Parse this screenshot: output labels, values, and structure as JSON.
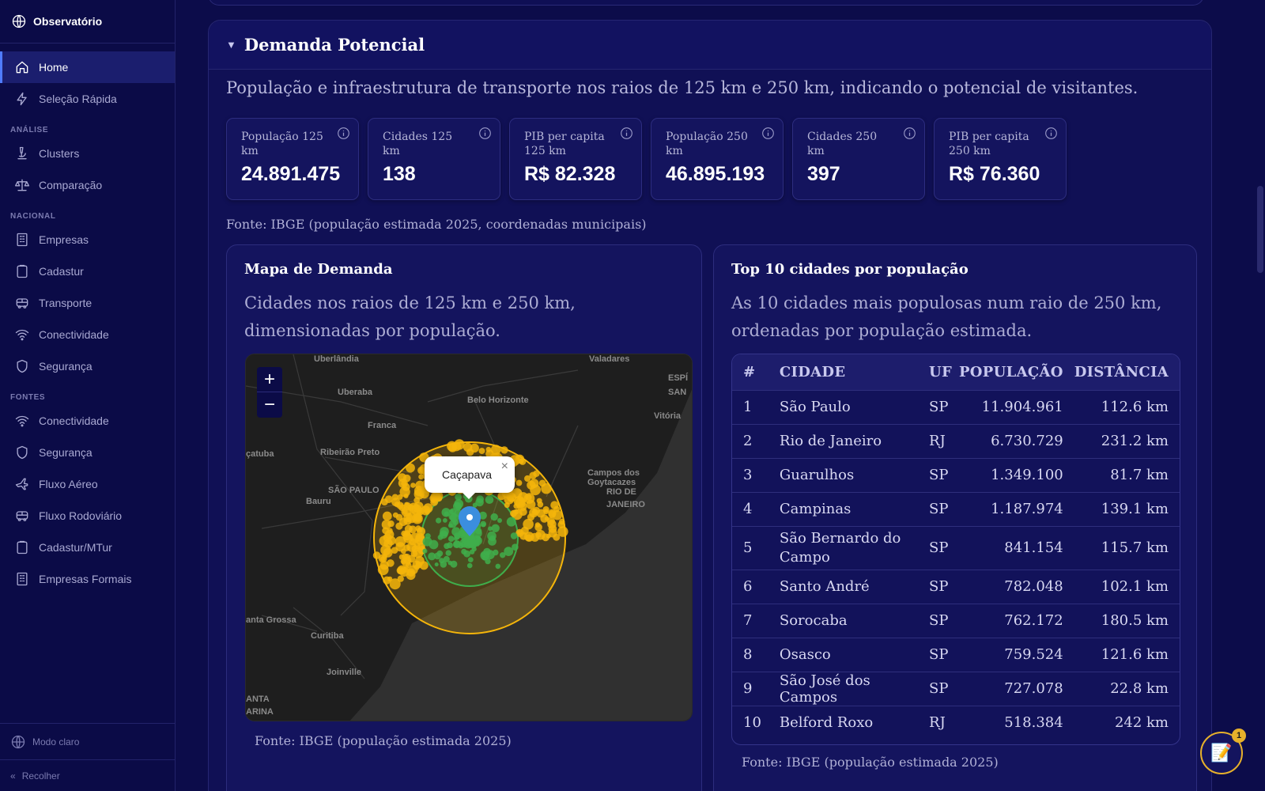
{
  "app": {
    "title": "Observatório"
  },
  "sidebar": {
    "items": [
      {
        "label": "Home",
        "icon": "home-icon",
        "active": true
      },
      {
        "label": "Seleção Rápida",
        "icon": "lightning-icon"
      }
    ],
    "sections": [
      {
        "title": "ANÁLISE",
        "items": [
          {
            "label": "Clusters",
            "icon": "microscope-icon"
          },
          {
            "label": "Comparação",
            "icon": "scale-icon"
          }
        ]
      },
      {
        "title": "NACIONAL",
        "items": [
          {
            "label": "Empresas",
            "icon": "building-icon"
          },
          {
            "label": "Cadastur",
            "icon": "clipboard-icon"
          },
          {
            "label": "Transporte",
            "icon": "bus-icon"
          },
          {
            "label": "Conectividade",
            "icon": "wifi-icon"
          },
          {
            "label": "Segurança",
            "icon": "shield-icon"
          }
        ]
      },
      {
        "title": "FONTES",
        "items": [
          {
            "label": "Conectividade",
            "icon": "wifi-icon"
          },
          {
            "label": "Segurança",
            "icon": "shield-icon"
          },
          {
            "label": "Fluxo Aéreo",
            "icon": "plane-icon"
          },
          {
            "label": "Fluxo Rodoviário",
            "icon": "bus-icon"
          },
          {
            "label": "Cadastur/MTur",
            "icon": "clipboard-icon"
          },
          {
            "label": "Empresas Formais",
            "icon": "building-icon"
          }
        ]
      }
    ],
    "footer": {
      "theme_label": "Modo claro",
      "collapse_label": "Recolher",
      "collapse_glyph": "«"
    }
  },
  "section": {
    "caret": "▼",
    "title": "Demanda Potencial",
    "description": "População e infraestrutura de transporte nos raios de 125 km e 250 km, indicando o potencial de visitantes.",
    "metrics": [
      {
        "label": "População 125 km",
        "value": "24.891.475"
      },
      {
        "label": "Cidades 125 km",
        "value": "138"
      },
      {
        "label": "PIB per capita 125 km",
        "value": "R$ 82.328"
      },
      {
        "label": "População 250 km",
        "value": "46.895.193"
      },
      {
        "label": "Cidades 250 km",
        "value": "397"
      },
      {
        "label": "PIB per capita 250 km",
        "value": "R$ 76.360"
      }
    ],
    "source": "Fonte: IBGE (população estimada 2025, coordenadas municipais)"
  },
  "map_panel": {
    "title": "Mapa de Demanda",
    "description": "Cidades nos raios de 125 km e 250 km, dimensionadas por população.",
    "zoom_in": "+",
    "zoom_out": "−",
    "popup_label": "Caçapava",
    "popup_close": "×",
    "labels": [
      "Uberlândia",
      "Valadares",
      "Uberaba",
      "Belo Horizonte",
      "ESPÍ",
      "SAN",
      "Vitória",
      "Franca",
      "çatuba",
      "Ribeirão Preto",
      "Campos dos",
      "Goytacazes",
      "SÃO PAULO",
      "Bauru",
      "RIO DE",
      "JANEIRO",
      "anta Grossa",
      "Curitiba",
      "Joinville",
      "ANTA",
      "ARINA"
    ],
    "colors": {
      "radius_250": "#f5b50a",
      "radius_125": "#3fae4b",
      "marker": "#3b8ede"
    },
    "source": "Fonte: IBGE (população estimada 2025)"
  },
  "table_panel": {
    "title": "Top 10 cidades por população",
    "description": "As 10 cidades mais populosas num raio de 250 km, ordenadas por população estimada.",
    "columns": [
      "#",
      "CIDADE",
      "UF",
      "POPULAÇÃO",
      "DISTÂNCIA"
    ],
    "rows": [
      [
        "1",
        "São Paulo",
        "SP",
        "11.904.961",
        "112.6 km"
      ],
      [
        "2",
        "Rio de Janeiro",
        "RJ",
        "6.730.729",
        "231.2 km"
      ],
      [
        "3",
        "Guarulhos",
        "SP",
        "1.349.100",
        "81.7 km"
      ],
      [
        "4",
        "Campinas",
        "SP",
        "1.187.974",
        "139.1 km"
      ],
      [
        "5",
        "São Bernardo do Campo",
        "SP",
        "841.154",
        "115.7 km"
      ],
      [
        "6",
        "Santo André",
        "SP",
        "782.048",
        "102.1 km"
      ],
      [
        "7",
        "Sorocaba",
        "SP",
        "762.172",
        "180.5 km"
      ],
      [
        "8",
        "Osasco",
        "SP",
        "759.524",
        "121.6 km"
      ],
      [
        "9",
        "São José dos Campos",
        "SP",
        "727.078",
        "22.8 km"
      ],
      [
        "10",
        "Belford Roxo",
        "RJ",
        "518.384",
        "242 km"
      ]
    ],
    "source": "Fonte: IBGE (população estimada 2025)"
  },
  "fab": {
    "icon": "notes-icon",
    "badge": "1"
  }
}
